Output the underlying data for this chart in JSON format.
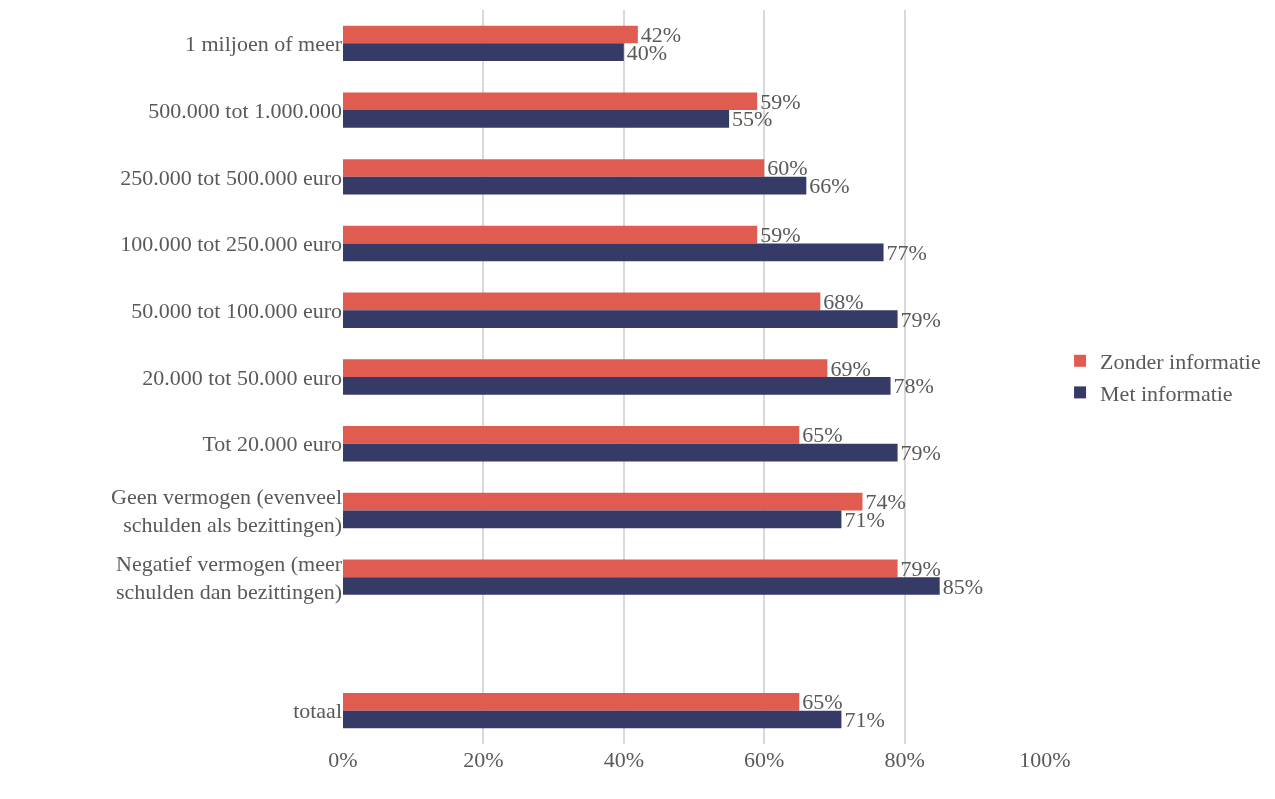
{
  "chart_data": {
    "type": "bar",
    "orientation": "horizontal",
    "categories": [
      "1 miljoen of meer",
      "500.000 tot 1.000.000",
      "250.000 tot 500.000 euro",
      "100.000 tot 250.000 euro",
      "50.000 tot 100.000 euro",
      "20.000 tot 50.000 euro",
      "Tot 20.000 euro",
      "Geen vermogen (evenveel schulden als bezittingen)",
      "Negatief vermogen (meer schulden dan bezittingen)",
      null,
      "totaal"
    ],
    "series": [
      {
        "name": "Zonder informatie",
        "color": "#e05c50",
        "values": [
          42,
          59,
          60,
          59,
          68,
          69,
          65,
          74,
          79,
          null,
          65
        ],
        "value_labels": [
          "42%",
          "59%",
          "60%",
          "59%",
          "68%",
          "69%",
          "65%",
          "74%",
          "79%",
          null,
          "65%"
        ]
      },
      {
        "name": "Met informatie",
        "color": "#363a66",
        "values": [
          40,
          55,
          66,
          77,
          79,
          78,
          79,
          71,
          85,
          null,
          71
        ],
        "value_labels": [
          "40%",
          "55%",
          "66%",
          "77%",
          "79%",
          "78%",
          "79%",
          "71%",
          "85%",
          null,
          "71%"
        ]
      }
    ],
    "xlim": [
      0,
      100
    ],
    "xticks": [
      {
        "value": 0,
        "label": "0%"
      },
      {
        "value": 20,
        "label": "20%"
      },
      {
        "value": 40,
        "label": "40%"
      },
      {
        "value": 60,
        "label": "60%"
      },
      {
        "value": 80,
        "label": "80%"
      },
      {
        "value": 100,
        "label": "100%"
      }
    ],
    "grid": "x",
    "legend": "right"
  }
}
